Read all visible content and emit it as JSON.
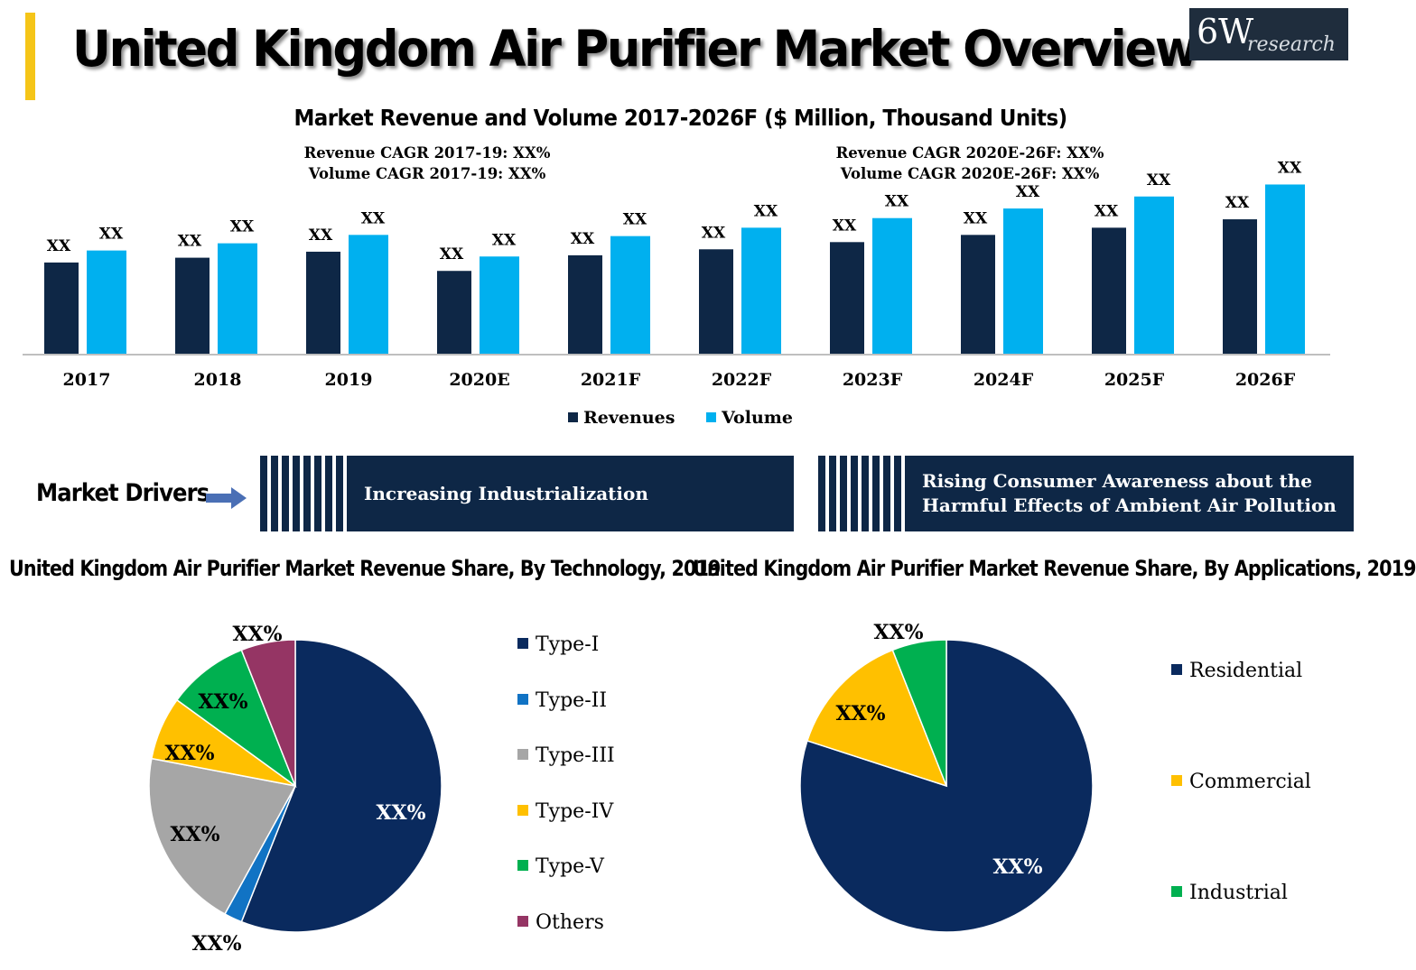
{
  "header": {
    "title": "United Kingdom Air Purifier Market Overview",
    "logo_main": "6W",
    "logo_sub": "research"
  },
  "main_chart": {
    "title": "Market Revenue and Volume 2017-2026F ($ Million, Thousand Units)",
    "cagr_left": [
      "Revenue CAGR 2017-19: XX%",
      "Volume CAGR 2017-19: XX%"
    ],
    "cagr_right": [
      "Revenue CAGR 2020E-26F: XX%",
      "Volume CAGR 2020E-26F: XX%"
    ]
  },
  "drivers": {
    "label": "Market Drivers",
    "items": [
      "Increasing Industrialization",
      "Rising  Consumer Awareness about the Harmful Effects of Ambient Air Pollution"
    ]
  },
  "colors": {
    "revenues": "#0e2746",
    "volume": "#00b0ef",
    "type1": "#0a2a5e",
    "type2": "#1173c4",
    "type3": "#a6a6a6",
    "type4": "#ffc000",
    "type5": "#00b050",
    "others": "#953564"
  },
  "chart_data": [
    {
      "type": "bar",
      "categories": [
        "2017",
        "2018",
        "2019",
        "2020E",
        "2021F",
        "2022F",
        "2023F",
        "2024F",
        "2025F",
        "2026F"
      ],
      "series": [
        {
          "name": "Revenues",
          "values": [
            76,
            80,
            85,
            69,
            82,
            87,
            93,
            99,
            105,
            112
          ],
          "labels": [
            "XX",
            "XX",
            "XX",
            "XX",
            "XX",
            "XX",
            "XX",
            "XX",
            "XX",
            "XX"
          ]
        },
        {
          "name": "Volume",
          "values": [
            86,
            92,
            99,
            81,
            98,
            105,
            113,
            121,
            131,
            141
          ],
          "labels": [
            "XX",
            "XX",
            "XX",
            "XX",
            "XX",
            "XX",
            "XX",
            "XX",
            "XX",
            "XX"
          ]
        }
      ],
      "title": "Market Revenue and Volume 2017-2026F ($ Million, Thousand Units)",
      "legend": "bottom",
      "grid": false
    },
    {
      "type": "pie",
      "title": "United Kingdom Air Purifier Market Revenue Share, By Technology, 2019",
      "categories": [
        "Type-I",
        "Type-II",
        "Type-III",
        "Type-IV",
        "Type-V",
        "Others"
      ],
      "values": [
        56,
        2,
        20,
        7,
        9,
        6
      ],
      "labels": [
        "XX%",
        "XX%",
        "XX%",
        "XX%",
        "XX%",
        "XX%"
      ],
      "legend": "right"
    },
    {
      "type": "pie",
      "title": "United Kingdom Air Purifier Market Revenue Share, By Applications, 2019",
      "categories": [
        "Residential",
        "Commercial",
        "Industrial"
      ],
      "values": [
        80,
        14,
        6
      ],
      "labels": [
        "XX%",
        "XX%",
        "XX%"
      ],
      "legend": "right"
    }
  ]
}
